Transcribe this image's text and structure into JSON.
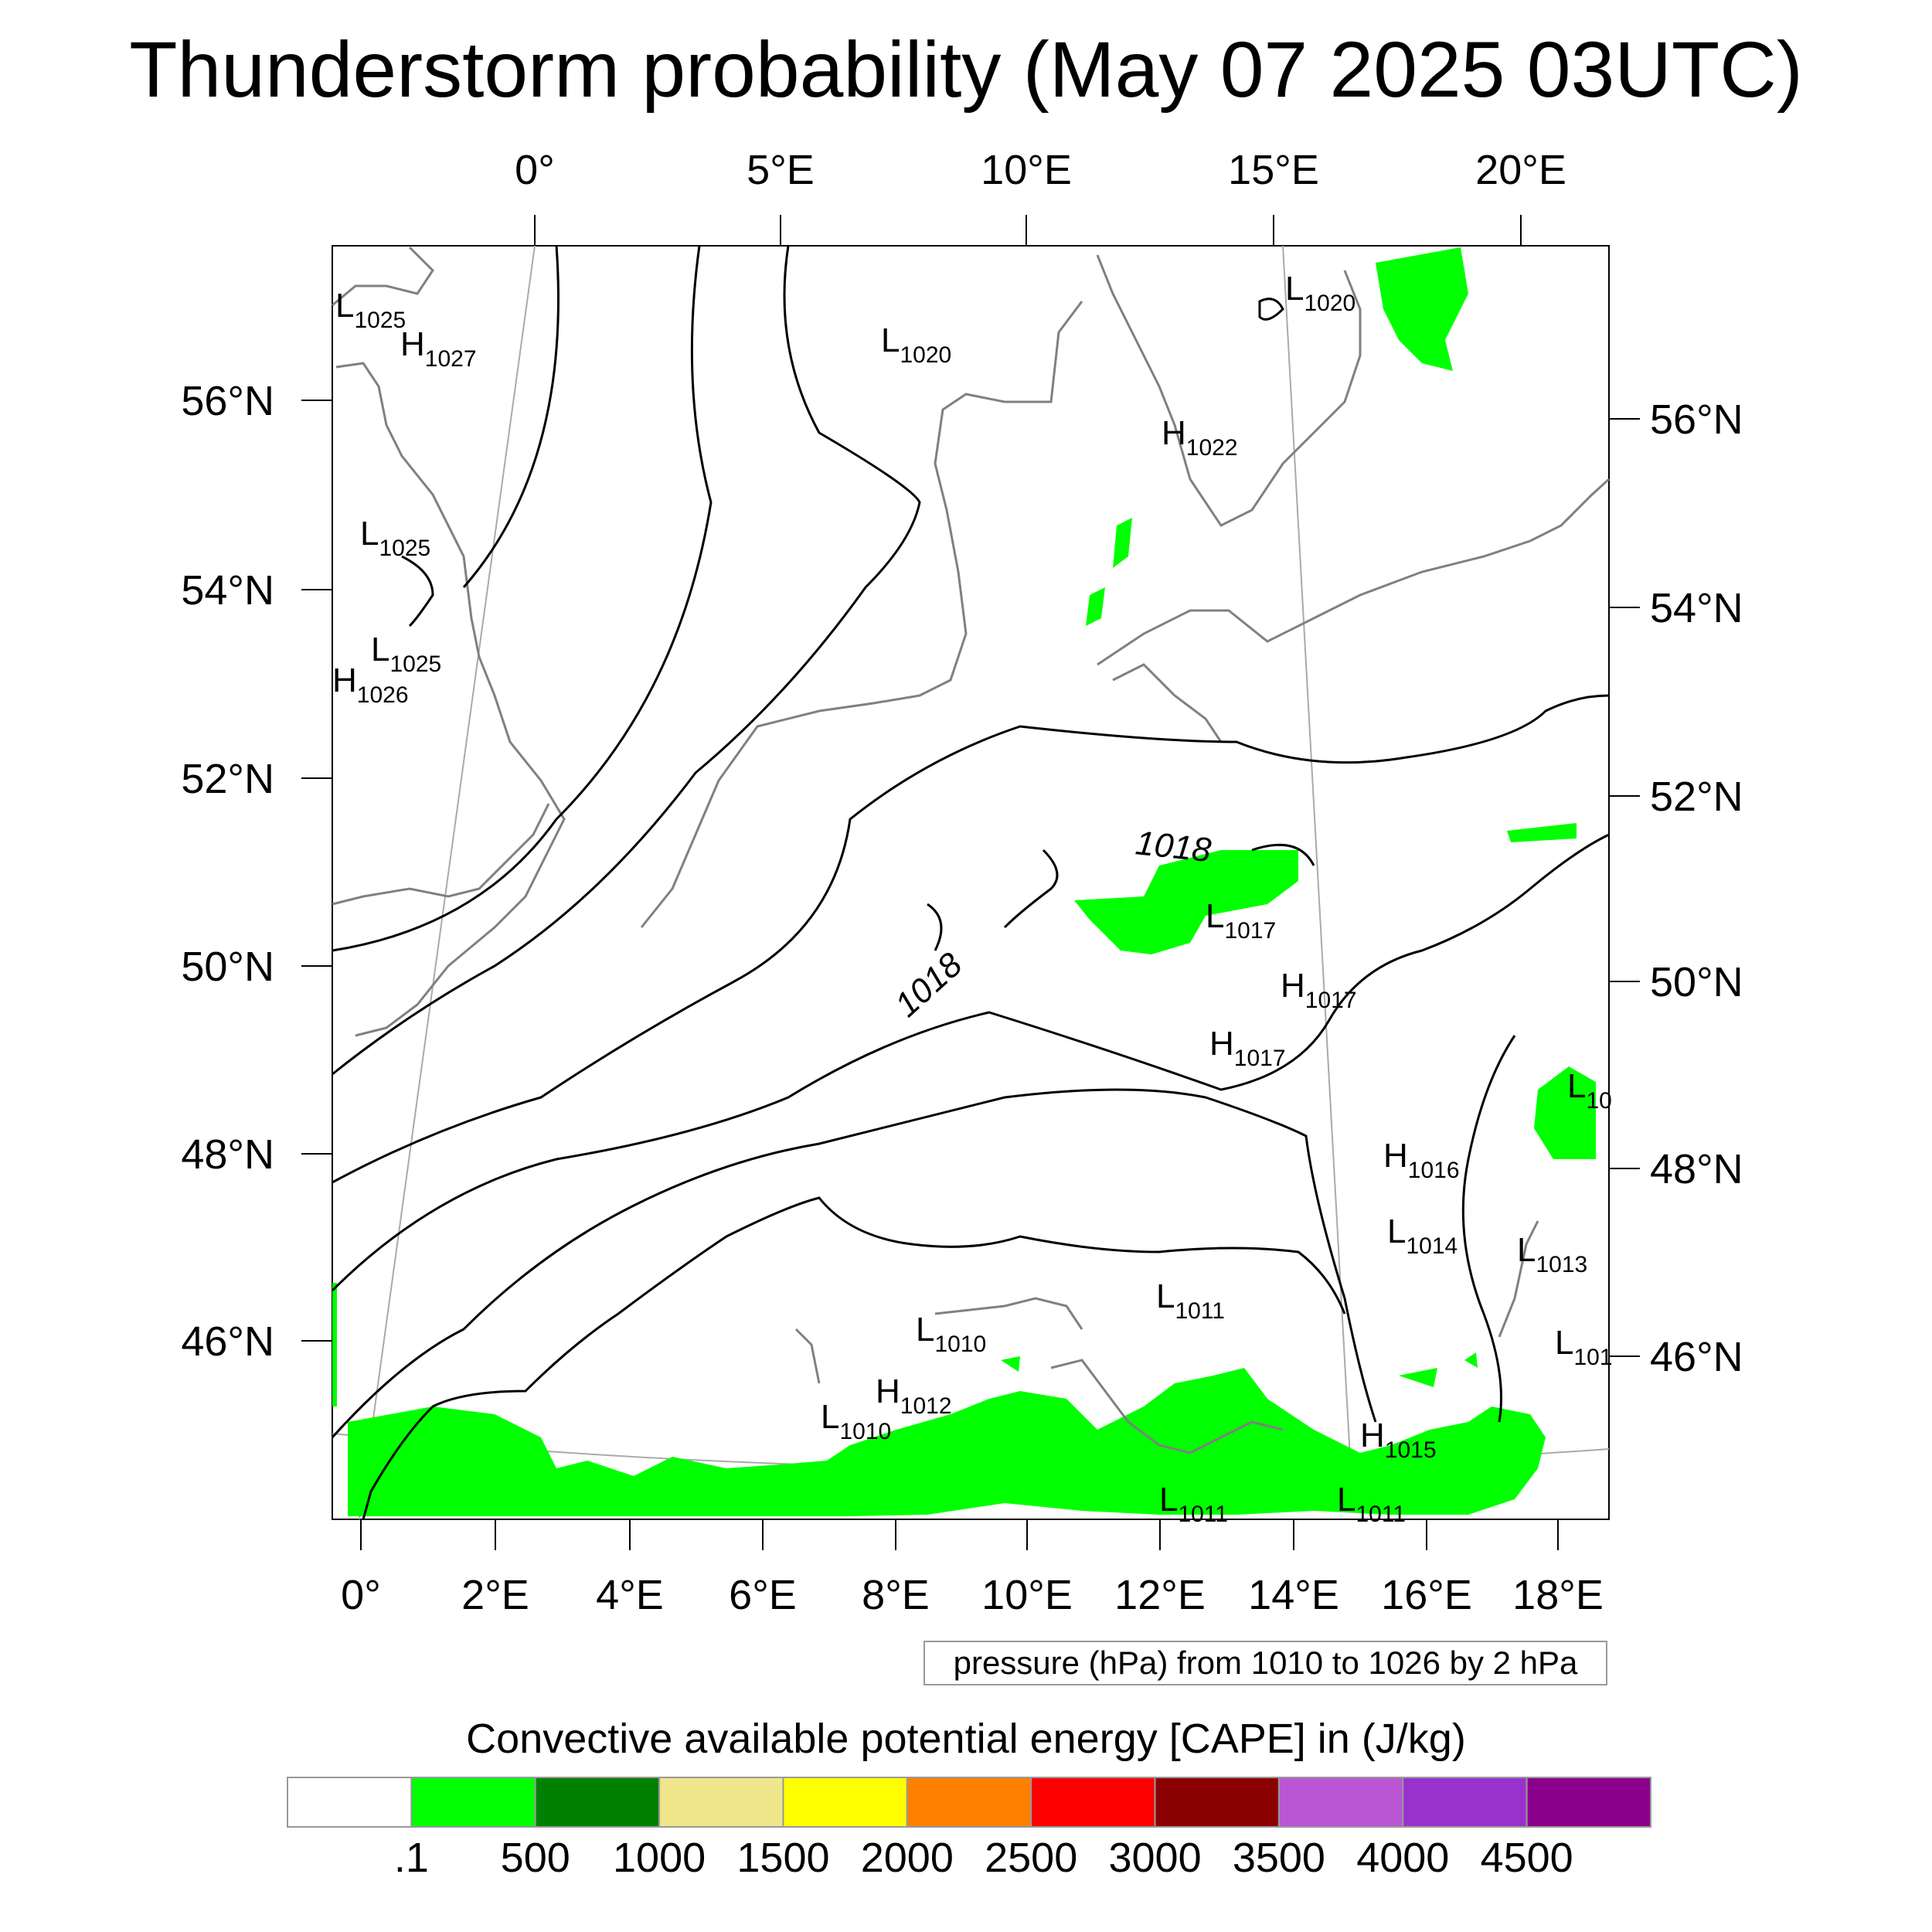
{
  "title": "Thunderstorm probability (May 07 2025 03UTC)",
  "map": {
    "top_lon_labels": [
      "0°",
      "5°E",
      "10°E",
      "15°E",
      "20°E"
    ],
    "left_lat_labels": [
      "56°N",
      "54°N",
      "52°N",
      "50°N",
      "48°N",
      "46°N"
    ],
    "right_lat_labels": [
      "56°N",
      "54°N",
      "52°N",
      "50°N",
      "48°N",
      "46°N"
    ],
    "bottom_lon_labels": [
      "0°",
      "2°E",
      "4°E",
      "6°E",
      "8°E",
      "10°E",
      "12°E",
      "14°E",
      "16°E",
      "18°E"
    ],
    "contour_labels": [
      "1018",
      "1018"
    ],
    "pressure_centers": [
      {
        "type": "L",
        "value": "1025"
      },
      {
        "type": "H",
        "value": "1027"
      },
      {
        "type": "L",
        "value": "1025"
      },
      {
        "type": "L",
        "value": "1025"
      },
      {
        "type": "H",
        "value": "1026"
      },
      {
        "type": "L",
        "value": "1020"
      },
      {
        "type": "L",
        "value": "1020"
      },
      {
        "type": "H",
        "value": "1022"
      },
      {
        "type": "L",
        "value": "1017"
      },
      {
        "type": "H",
        "value": "1017"
      },
      {
        "type": "H",
        "value": "1017"
      },
      {
        "type": "L",
        "value": "10"
      },
      {
        "type": "H",
        "value": "1016"
      },
      {
        "type": "L",
        "value": "1014"
      },
      {
        "type": "L",
        "value": "1013"
      },
      {
        "type": "L",
        "value": "1011"
      },
      {
        "type": "L",
        "value": "1010"
      },
      {
        "type": "L",
        "value": "101"
      },
      {
        "type": "H",
        "value": "1012"
      },
      {
        "type": "L",
        "value": "1010"
      },
      {
        "type": "H",
        "value": "1015"
      },
      {
        "type": "L",
        "value": "1011"
      },
      {
        "type": "L",
        "value": "1011"
      }
    ]
  },
  "legend_note": "pressure (hPa) from 1010 to 1026 by 2 hPa",
  "colorbar": {
    "title": "Convective available potential energy [CAPE] in (J/kg)",
    "colors": [
      "#ffffff",
      "#00ff00",
      "#008000",
      "#f0e68c",
      "#ffff00",
      "#ff8000",
      "#ff0000",
      "#8b0000",
      "#ba55d3",
      "#9932cc",
      "#8b008b"
    ],
    "tick_labels": [
      ".1",
      "500",
      "1000",
      "1500",
      "2000",
      "2500",
      "3000",
      "3500",
      "4000",
      "4500"
    ]
  }
}
